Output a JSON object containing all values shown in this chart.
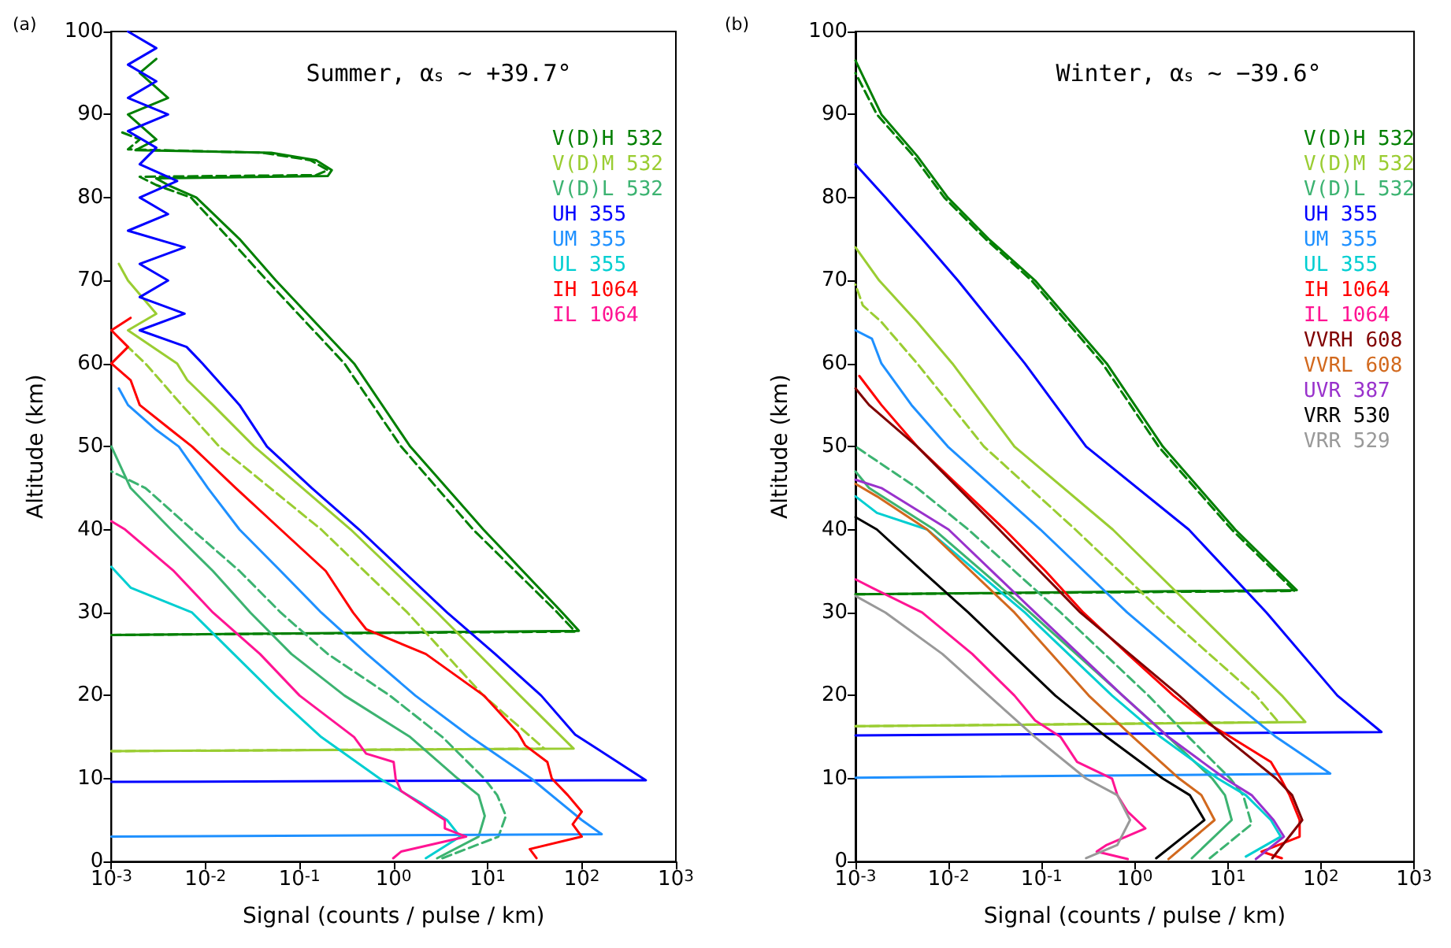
{
  "chart_data": [
    {
      "type": "line",
      "title": "Summer, α$_{s}$ ~ +39.7°",
      "xlabel": "Signal (counts / pulse / km)",
      "ylabel": "Altitude (km)",
      "annotations": [
        "(a)"
      ],
      "log": "x",
      "xlim": [
        0.001,
        1000
      ],
      "ylim": [
        0,
        100
      ],
      "xticks": [
        {
          "value": 0.001,
          "label": "10$^{-3}$"
        },
        {
          "value": 0.01,
          "label": "10$^{-2}$"
        },
        {
          "value": 0.1,
          "label": "10$^{-1}$"
        },
        {
          "value": 1,
          "label": "10$^{0}$"
        },
        {
          "value": 10,
          "label": "10$^{1}$"
        },
        {
          "value": 100,
          "label": "10$^{2}$"
        },
        {
          "value": 1000,
          "label": "10$^{3}$"
        }
      ],
      "yticks": [
        0,
        10,
        20,
        30,
        40,
        50,
        60,
        70,
        80,
        90,
        100
      ],
      "legend": "top right",
      "marker": "none",
      "line_style": "solid",
      "series": [
        {
          "name": "V(D)H 532",
          "color": "#007f00",
          "x": [
            0.001,
            93,
            62,
            9,
            1.5,
            0.38,
            0.056,
            0.023,
            0.008,
            0.004,
            0.003,
            0.2,
            0.22,
            0.15,
            0.05,
            0.0018,
            0.003,
            0.0015,
            0.004,
            0.002,
            0.003
          ],
          "values": [
            27.3,
            27.8,
            30,
            40,
            50,
            60,
            70,
            75,
            80,
            81.5,
            82.3,
            82.6,
            83.3,
            84.5,
            85.4,
            85.7,
            87,
            90,
            92,
            95,
            96.7
          ]
        },
        {
          "color": "#007f00",
          "line_style": "dashed",
          "x": [
            0.001,
            85,
            55,
            7,
            1.2,
            0.3,
            0.045,
            0.018,
            0.007,
            0.003,
            0.002,
            0.15,
            0.2,
            0.13,
            0.04,
            0.0015,
            0.002,
            0.0012
          ],
          "values": [
            27.3,
            27.7,
            30,
            40,
            50,
            60,
            70,
            75,
            80,
            81.5,
            82.5,
            82.7,
            83.3,
            84.5,
            85.4,
            85.8,
            87,
            88
          ]
        },
        {
          "name": "V(D)M 532",
          "color": "#9acd32",
          "x": [
            0.001,
            82,
            22,
            2.9,
            0.35,
            0.033,
            0.012,
            0.0064,
            0.005,
            0.0015,
            0.003,
            0.0015,
            0.0012
          ],
          "values": [
            13.3,
            13.6,
            20,
            30,
            40,
            50,
            55,
            58,
            60,
            64,
            66,
            70,
            72
          ]
        },
        {
          "color": "#9acd32",
          "line_style": "dashed",
          "x": [
            0.001,
            40,
            9,
            1.4,
            0.17,
            0.014,
            0.0056,
            0.0023,
            0.0015
          ],
          "values": [
            13.3,
            13.6,
            20,
            30,
            40,
            50,
            55,
            60,
            62
          ]
        },
        {
          "name": "V(D)L 532",
          "color": "#3cb371",
          "x": [
            2.9,
            8,
            9.3,
            8,
            4.8,
            1.5,
            0.3,
            0.082,
            0.03,
            0.012,
            0.0043,
            0.0016,
            0.001
          ],
          "values": [
            0.4,
            3,
            5.5,
            8,
            10,
            15,
            20,
            25,
            30,
            35,
            40,
            45,
            50
          ]
        },
        {
          "color": "#3cb371",
          "line_style": "dashed",
          "x": [
            3.3,
            13,
            15.6,
            12.6,
            9.2,
            3.3,
            0.91,
            0.2,
            0.063,
            0.023,
            0.0072,
            0.0023,
            0.001
          ],
          "values": [
            0.4,
            3,
            5.5,
            8,
            10,
            15,
            20,
            25,
            30,
            35,
            40,
            45,
            47
          ]
        },
        {
          "name": "UH 355",
          "color": "#0000ff",
          "x": [
            0.001,
            480,
            85,
            37,
            12,
            3.7,
            1.26,
            0.43,
            0.135,
            0.045,
            0.023,
            0.0093,
            0.0063,
            0.002,
            0.006,
            0.002,
            0.004,
            0.002,
            0.006,
            0.0015,
            0.004,
            0.002,
            0.005,
            0.002,
            0.003,
            0.0015,
            0.004,
            0.0015,
            0.003,
            0.0015,
            0.003,
            0.0015
          ],
          "values": [
            9.6,
            9.8,
            15.3,
            20,
            25,
            30,
            35,
            40,
            45,
            50,
            55,
            60,
            62,
            64,
            66,
            68,
            70,
            72,
            74,
            76,
            78,
            80,
            82,
            84,
            86,
            88,
            90,
            92,
            94,
            96,
            98,
            100
          ]
        },
        {
          "name": "UM 355",
          "color": "#1e90ff",
          "x": [
            0.001,
            163,
            100,
            29,
            6.6,
            1.7,
            0.52,
            0.17,
            0.063,
            0.023,
            0.0106,
            0.0052,
            0.003,
            0.0015,
            0.0012
          ],
          "values": [
            3.0,
            3.3,
            5,
            10,
            15,
            20,
            25,
            30,
            35,
            40,
            45,
            50,
            52,
            55,
            57
          ]
        },
        {
          "name": "UL 355",
          "color": "#00ced1",
          "x": [
            2.2,
            5.1,
            3.7,
            2.0,
            0.71,
            0.17,
            0.056,
            0.02,
            0.0072,
            0.0016,
            0.001
          ],
          "values": [
            0.4,
            3,
            5,
            7,
            10,
            15,
            20,
            25,
            30,
            33,
            35.5
          ]
        },
        {
          "name": "IH 1064",
          "color": "#ff0000",
          "x": [
            33,
            28,
            100,
            80,
            100,
            71,
            48,
            43,
            25,
            21,
            9.1,
            2.2,
            0.51,
            0.37,
            0.19,
            0.063,
            0.021,
            0.0072,
            0.0043,
            0.002,
            0.0016,
            0.001,
            0.0015,
            0.001,
            0.0016
          ],
          "values": [
            0.4,
            1.5,
            3,
            4.5,
            6,
            8,
            10,
            12,
            14,
            15.5,
            20,
            25,
            28,
            30,
            35,
            40,
            45,
            50,
            52,
            55,
            58,
            60,
            62,
            64,
            65.5
          ]
        },
        {
          "name": "IL 1064",
          "color": "#ff1493",
          "x": [
            0.99,
            1.2,
            5.9,
            3.5,
            3.5,
            1.2,
            1.05,
            1.0,
            0.51,
            0.38,
            0.1,
            0.038,
            0.012,
            0.0046,
            0.0014,
            0.001
          ],
          "values": [
            0.4,
            1.2,
            3,
            4,
            5,
            8.5,
            10,
            12,
            13,
            15,
            20,
            25,
            30,
            35,
            40,
            41
          ]
        }
      ]
    },
    {
      "type": "line",
      "title": "Winter, α$_{s}$ ~ −39.6°",
      "xlabel": "Signal (counts / pulse / km)",
      "ylabel": "Altitude (km)",
      "annotations": [
        "(b)"
      ],
      "log": "x",
      "xlim": [
        0.001,
        1000
      ],
      "ylim": [
        0,
        100
      ],
      "xticks": [
        {
          "value": 0.001,
          "label": "10$^{-3}$"
        },
        {
          "value": 0.01,
          "label": "10$^{-2}$"
        },
        {
          "value": 0.1,
          "label": "10$^{-1}$"
        },
        {
          "value": 1,
          "label": "10$^{0}$"
        },
        {
          "value": 10,
          "label": "10$^{1}$"
        },
        {
          "value": 100,
          "label": "10$^{2}$"
        },
        {
          "value": 1000,
          "label": "10$^{3}$"
        }
      ],
      "yticks": [
        0,
        10,
        20,
        30,
        40,
        50,
        60,
        70,
        80,
        90,
        100
      ],
      "legend": "top right",
      "marker": "none",
      "line_style": "solid",
      "series": [
        {
          "name": "V(D)H 532",
          "color": "#007f00",
          "x": [
            0.001,
            55,
            12,
            2.0,
            0.5,
            0.085,
            0.027,
            0.0098,
            0.0046,
            0.0019,
            0.001
          ],
          "values": [
            32.2,
            32.7,
            40,
            50,
            60,
            70,
            75,
            80,
            85,
            90,
            96.5
          ]
        },
        {
          "color": "#007f00",
          "line_style": "dashed",
          "x": [
            0.001,
            52,
            11,
            1.8,
            0.45,
            0.078,
            0.025,
            0.009,
            0.0042,
            0.0017,
            0.001
          ],
          "values": [
            32.2,
            32.6,
            40,
            50,
            60,
            70,
            75,
            80,
            85,
            90,
            95
          ]
        },
        {
          "name": "V(D)M 532",
          "color": "#9acd32",
          "x": [
            0.001,
            68,
            38,
            4.7,
            0.58,
            0.051,
            0.011,
            0.0046,
            0.0018,
            0.001
          ],
          "values": [
            16.3,
            16.8,
            20,
            30,
            40,
            50,
            60,
            65,
            70,
            74
          ]
        },
        {
          "color": "#9acd32",
          "line_style": "dashed",
          "x": [
            0.001,
            35,
            20,
            2.0,
            0.23,
            0.024,
            0.0046,
            0.0019,
            0.0012,
            0.001
          ],
          "values": [
            16.3,
            16.8,
            20,
            30,
            40,
            50,
            60,
            65,
            67,
            69.5
          ]
        },
        {
          "name": "V(D)L 532",
          "color": "#3cb371",
          "x": [
            4.1,
            11,
            9.3,
            6.8,
            2.3,
            0.74,
            0.075,
            0.007,
            0.0014,
            0.001
          ],
          "values": [
            0.4,
            5,
            8,
            10,
            15,
            20,
            30,
            40,
            45,
            47
          ]
        },
        {
          "color": "#3cb371",
          "line_style": "dashed",
          "x": [
            6.4,
            18,
            14.6,
            10.6,
            3.8,
            1.4,
            0.16,
            0.0163,
            0.0046,
            0.001
          ],
          "values": [
            0.4,
            4.5,
            8,
            10,
            15,
            20,
            30,
            40,
            45,
            50
          ]
        },
        {
          "name": "UH 355",
          "color": "#0000ff",
          "x": [
            0.001,
            447,
            150,
            26,
            3.8,
            0.3,
            0.066,
            0.0126,
            0.0052,
            0.0021,
            0.001
          ],
          "values": [
            15.2,
            15.6,
            20,
            30,
            40,
            50,
            60,
            70,
            75,
            80,
            84
          ]
        },
        {
          "name": "UM 355",
          "color": "#1e90ff",
          "x": [
            0.001,
            126,
            33,
            9.3,
            0.83,
            0.097,
            0.0098,
            0.004,
            0.0019,
            0.0015,
            0.001
          ],
          "values": [
            10.1,
            10.6,
            15,
            20,
            30,
            40,
            50,
            55,
            60,
            63,
            64
          ]
        },
        {
          "name": "UL 355",
          "color": "#00ced1",
          "x": [
            15.6,
            37,
            29,
            15.6,
            7.8,
            1.9,
            0.57,
            0.066,
            0.0059,
            0.0017,
            0.001
          ],
          "values": [
            0.6,
            3,
            5,
            8,
            10,
            15,
            20,
            30,
            40,
            42,
            44
          ]
        },
        {
          "name": "IH 1064",
          "color": "#ff0000",
          "x": [
            38,
            23,
            59,
            59,
            46,
            37,
            29,
            10.7,
            6.4,
            2.6,
            0.84,
            0.28,
            0.11,
            0.04,
            0.0046,
            0.0019,
            0.0011
          ],
          "values": [
            0.4,
            1.2,
            3,
            5,
            8,
            10,
            12,
            15,
            16.5,
            20,
            25,
            30,
            35,
            40,
            50,
            55,
            58.5
          ]
        },
        {
          "name": "IL 1064",
          "color": "#ff1493",
          "x": [
            0.84,
            0.39,
            0.5,
            1.3,
            0.84,
            0.65,
            0.57,
            0.24,
            0.16,
            0.085,
            0.051,
            0.018,
            0.0052,
            0.0015,
            0.001
          ],
          "values": [
            0.3,
            1.2,
            2,
            4,
            6,
            8,
            10,
            12,
            15,
            17,
            20,
            25,
            30,
            33,
            34
          ]
        },
        {
          "name": "VVRH 608",
          "color": "#800000",
          "x": [
            30,
            63,
            49,
            33,
            9.3,
            3.0,
            0.26,
            0.035,
            0.0046,
            0.0014,
            0.001
          ],
          "values": [
            0.4,
            5,
            8,
            10,
            15,
            20,
            30,
            40,
            50,
            55,
            57
          ]
        },
        {
          "name": "VVRL 608",
          "color": "#d2691e",
          "x": [
            2.3,
            7.2,
            5.2,
            3.0,
            0.96,
            0.32,
            0.051,
            0.0059,
            0.0017,
            0.001
          ],
          "values": [
            0.3,
            5,
            8,
            10,
            15,
            20,
            30,
            40,
            44,
            45.5
          ]
        },
        {
          "name": "UVR 387",
          "color": "#9932cc",
          "x": [
            20,
            40,
            31,
            18,
            9.3,
            2.3,
            0.74,
            0.085,
            0.01,
            0.0019,
            0.001
          ],
          "values": [
            0.3,
            3,
            5,
            8,
            10,
            15,
            20,
            30,
            40,
            45,
            46
          ]
        },
        {
          "name": "VRR 530",
          "color": "#000000",
          "x": [
            1.7,
            5.6,
            3.9,
            2.0,
            0.5,
            0.14,
            0.0163,
            0.0052,
            0.0017,
            0.001
          ],
          "values": [
            0.4,
            5,
            8,
            10,
            15,
            20,
            30,
            35,
            40,
            41.5
          ]
        },
        {
          "name": "VRR 529",
          "color": "#999999",
          "x": [
            0.3,
            0.65,
            0.89,
            0.65,
            0.3,
            0.085,
            0.027,
            0.0086,
            0.0021,
            0.001
          ],
          "values": [
            0.4,
            2,
            5,
            8,
            10,
            15,
            20,
            25,
            30,
            32
          ]
        }
      ]
    }
  ]
}
